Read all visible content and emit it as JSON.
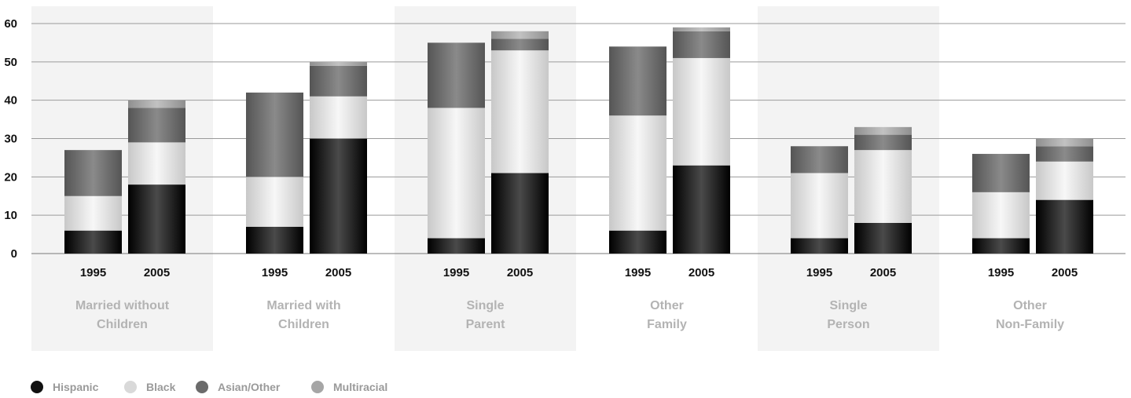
{
  "chart_data": {
    "type": "bar",
    "stacked": true,
    "ylim": [
      0,
      60
    ],
    "yticks": [
      0,
      10,
      20,
      30,
      40,
      50,
      60
    ],
    "grid": true,
    "legend_position": "bottom-left",
    "groups": [
      {
        "label": [
          "Married without",
          "Children"
        ],
        "shaded": true
      },
      {
        "label": [
          "Married with",
          "Children"
        ],
        "shaded": false
      },
      {
        "label": [
          "Single",
          "Parent"
        ],
        "shaded": true
      },
      {
        "label": [
          "Other",
          "Family"
        ],
        "shaded": false
      },
      {
        "label": [
          "Single",
          "Person"
        ],
        "shaded": true
      },
      {
        "label": [
          "Other",
          "Non-Family"
        ],
        "shaded": false
      }
    ],
    "years": [
      "1995",
      "2005"
    ],
    "series": [
      {
        "name": "Hispanic",
        "color": "#111111",
        "values": [
          [
            6,
            18
          ],
          [
            7,
            30
          ],
          [
            4,
            21
          ],
          [
            6,
            23
          ],
          [
            4,
            8
          ],
          [
            4,
            14
          ]
        ]
      },
      {
        "name": "Black",
        "color": "#d9d9d9",
        "values": [
          [
            9,
            11
          ],
          [
            13,
            11
          ],
          [
            34,
            32
          ],
          [
            30,
            28
          ],
          [
            17,
            19
          ],
          [
            12,
            10
          ]
        ]
      },
      {
        "name": "Asian/Other",
        "color": "#6b6b6b",
        "values": [
          [
            12,
            9
          ],
          [
            22,
            8
          ],
          [
            17,
            3
          ],
          [
            18,
            7
          ],
          [
            7,
            4
          ],
          [
            10,
            4
          ]
        ]
      },
      {
        "name": "Multiracial",
        "color": "#a6a6a6",
        "values": [
          [
            0,
            2
          ],
          [
            0,
            1
          ],
          [
            0,
            2
          ],
          [
            0,
            1
          ],
          [
            0,
            2
          ],
          [
            0,
            2
          ]
        ]
      }
    ]
  }
}
